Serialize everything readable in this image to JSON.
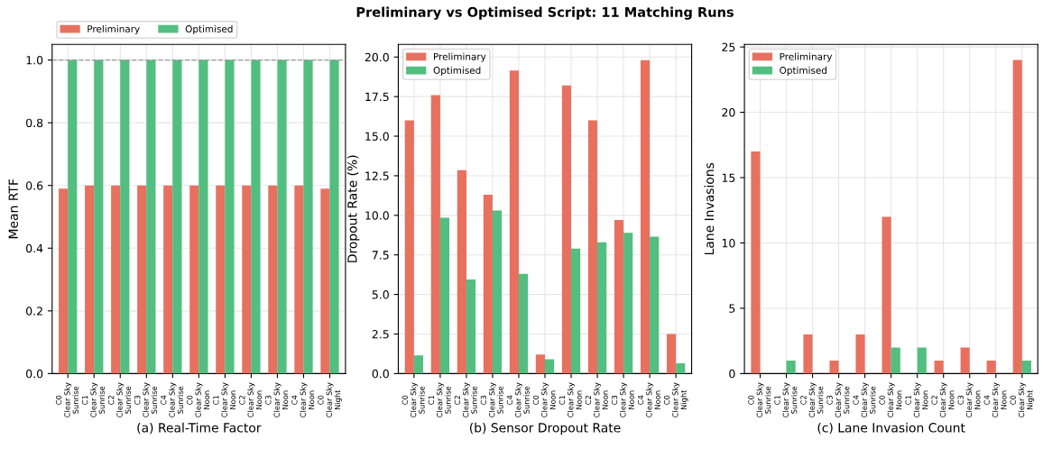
{
  "chart_data": [
    {
      "type": "bar",
      "xlabel": "(a) Real-Time Factor",
      "ylabel": "Mean RTF",
      "categories": [
        "C0\nClear Sky\nSunrise",
        "C1\nClear Sky\nSunrise",
        "C2\nClear Sky\nSunrise",
        "C3\nClear Sky\nSunrise",
        "C4\nClear Sky\nSunrise",
        "C0\nClear Sky\nNoon",
        "C1\nClear Sky\nNoon",
        "C2\nClear Sky\nNoon",
        "C3\nClear Sky\nNoon",
        "C4\nClear Sky\nNoon",
        "C0\nClear Sky\nNight"
      ],
      "series": [
        {
          "name": "Preliminary",
          "color": "#e8705f",
          "values": [
            0.59,
            0.6,
            0.6,
            0.6,
            0.6,
            0.6,
            0.6,
            0.6,
            0.6,
            0.6,
            0.59
          ]
        },
        {
          "name": "Optimised",
          "color": "#52be80",
          "values": [
            1.0,
            1.0,
            1.0,
            1.0,
            1.0,
            1.0,
            1.0,
            1.0,
            1.0,
            1.0,
            1.0
          ]
        }
      ],
      "ylim": [
        0,
        1.05
      ],
      "yticks": [
        {
          "value": 0,
          "label": "0.0"
        },
        0.2,
        0.4,
        0.6,
        0.8,
        {
          "value": 1,
          "label": "1.0"
        }
      ],
      "ref_lines": [
        {
          "axis": "y",
          "value": 1,
          "color": "#999999",
          "line_style": "dashed"
        }
      ],
      "grid": true,
      "legend": "top"
    },
    {
      "type": "bar",
      "title": "Preliminary vs Optimised Script: 11 Matching Runs",
      "xlabel": "(b) Sensor Dropout Rate",
      "ylabel": "Dropout Rate (%)",
      "categories": [
        "C0\nClear Sky\nSunrise",
        "C1\nClear Sky\nSunrise",
        "C2\nClear Sky\nSunrise",
        "C3\nClear Sky\nSunrise",
        "C4\nClear Sky\nSunrise",
        "C0\nClear Sky\nNoon",
        "C1\nClear Sky\nNoon",
        "C2\nClear Sky\nNoon",
        "C3\nClear Sky\nNoon",
        "C4\nClear Sky\nNoon",
        "C0\nClear Sky\nNight"
      ],
      "series": [
        {
          "name": "Preliminary",
          "color": "#e8705f",
          "values": [
            16.0,
            17.6,
            12.85,
            11.3,
            19.15,
            1.2,
            18.2,
            16.0,
            9.7,
            19.8,
            2.5
          ]
        },
        {
          "name": "Optimised",
          "color": "#52be80",
          "values": [
            1.15,
            9.85,
            5.95,
            10.3,
            6.3,
            0.9,
            7.9,
            8.3,
            8.9,
            8.65,
            0.65
          ]
        }
      ],
      "ylim": [
        0,
        20.8
      ],
      "yticks": [
        {
          "value": 0,
          "label": "0.0"
        },
        2.5,
        {
          "value": 5,
          "label": "5.0"
        },
        7.5,
        {
          "value": 10,
          "label": "10.0"
        },
        12.5,
        {
          "value": 15,
          "label": "15.0"
        },
        17.5,
        {
          "value": 20,
          "label": "20.0"
        }
      ],
      "grid": true,
      "legend": "top left"
    },
    {
      "type": "bar",
      "xlabel": "(c) Lane Invasion Count",
      "ylabel": "Lane Invasions",
      "categories": [
        "C0\nClear Sky\nSunrise",
        "C1\nClear Sky\nSunrise",
        "C2\nClear Sky\nSunrise",
        "C3\nClear Sky\nSunrise",
        "C4\nClear Sky\nSunrise",
        "C0\nClear Sky\nNoon",
        "C1\nClear Sky\nNoon",
        "C2\nClear Sky\nNoon",
        "C3\nClear Sky\nNoon",
        "C4\nClear Sky\nNoon",
        "C0\nClear Sky\nNight"
      ],
      "series": [
        {
          "name": "Preliminary",
          "color": "#e8705f",
          "values": [
            17,
            0,
            3,
            1,
            3,
            12,
            0,
            1,
            2,
            1,
            24
          ]
        },
        {
          "name": "Optimised",
          "color": "#52be80",
          "values": [
            0,
            1,
            0,
            0,
            0,
            2,
            2,
            0,
            0,
            0,
            1
          ]
        }
      ],
      "ylim": [
        0,
        25.2
      ],
      "yticks": [
        0,
        5,
        10,
        15,
        20,
        25
      ],
      "grid": true,
      "legend": "top left"
    }
  ]
}
